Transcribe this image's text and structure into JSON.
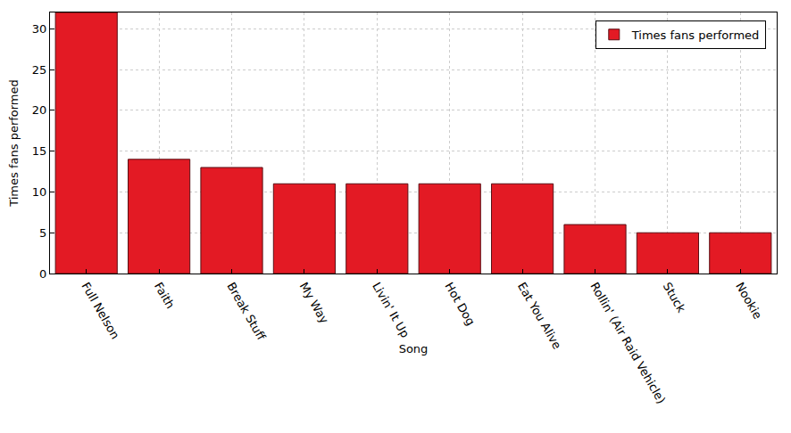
{
  "chart_data": {
    "type": "bar",
    "categories": [
      "Full Nelson",
      "Faith",
      "Break Stuff",
      "My Way",
      "Livin' It Up",
      "Hot Dog",
      "Eat You Alive",
      "Rollin' (Air Raid Vehicle)",
      "Stuck",
      "Nookie"
    ],
    "series": [
      {
        "name": "Times fans performed",
        "color": "#e31a24",
        "values": [
          32,
          14,
          13,
          11,
          11,
          11,
          11,
          6,
          5,
          5
        ]
      }
    ],
    "xlabel": "Song",
    "ylabel": "Times fans performed",
    "ylim": [
      0,
      32
    ],
    "yticks": [
      0,
      5,
      10,
      15,
      20,
      25,
      30
    ],
    "grid": true,
    "legend": "upper right"
  }
}
